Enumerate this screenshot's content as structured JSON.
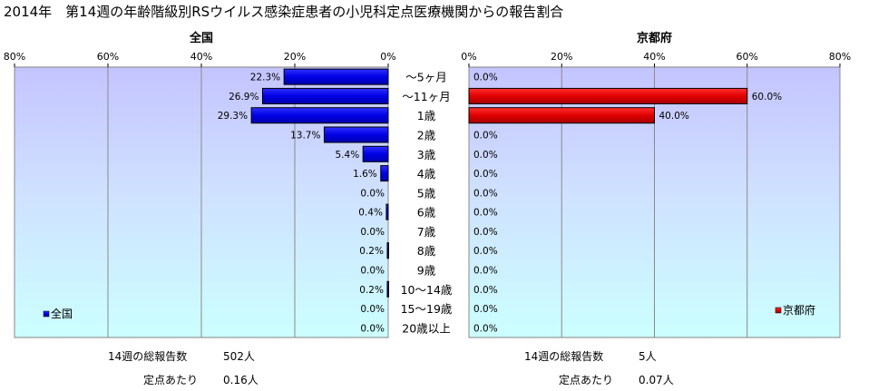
{
  "title": "2014年　第14週の年齢階級別RSウイルス感染症患者の小児科定点医療機関からの報告割合",
  "categories": [
    "～5ヶ月",
    "～11ヶ月",
    "1歳",
    "2歳",
    "3歳",
    "4歳",
    "5歳",
    "6歳",
    "7歳",
    "8歳",
    "9歳",
    "10～14歳",
    "15～19歳",
    "20歳以上"
  ],
  "chart_data": [
    {
      "type": "bar",
      "orientation": "horizontal",
      "x_direction": "reversed",
      "title": "全国",
      "categories": [
        "～5ヶ月",
        "～11ヶ月",
        "1歳",
        "2歳",
        "3歳",
        "4歳",
        "5歳",
        "6歳",
        "7歳",
        "8歳",
        "9歳",
        "10～14歳",
        "15～19歳",
        "20歳以上"
      ],
      "series": [
        {
          "name": "全国",
          "values": [
            22.3,
            26.9,
            29.3,
            13.7,
            5.4,
            1.6,
            0.0,
            0.4,
            0.0,
            0.2,
            0.0,
            0.2,
            0.0,
            0.0
          ]
        }
      ],
      "value_labels": [
        "22.3%",
        "26.9%",
        "29.3%",
        "13.7%",
        "5.4%",
        "1.6%",
        "0.0%",
        "0.4%",
        "0.0%",
        "0.2%",
        "0.0%",
        "0.2%",
        "0.0%",
        "0.0%"
      ],
      "xlim": [
        0,
        80
      ],
      "ticks": [
        "80%",
        "60%",
        "40%",
        "20%",
        "0%"
      ],
      "grid": true,
      "legend": "bottom-left",
      "bar_color": "#0000ee"
    },
    {
      "type": "bar",
      "orientation": "horizontal",
      "title": "京都府",
      "categories": [
        "～5ヶ月",
        "～11ヶ月",
        "1歳",
        "2歳",
        "3歳",
        "4歳",
        "5歳",
        "6歳",
        "7歳",
        "8歳",
        "9歳",
        "10～14歳",
        "15～19歳",
        "20歳以上"
      ],
      "series": [
        {
          "name": "京都府",
          "values": [
            0.0,
            60.0,
            40.0,
            0.0,
            0.0,
            0.0,
            0.0,
            0.0,
            0.0,
            0.0,
            0.0,
            0.0,
            0.0,
            0.0
          ]
        }
      ],
      "value_labels": [
        "0.0%",
        "60.0%",
        "40.0%",
        "0.0%",
        "0.0%",
        "0.0%",
        "0.0%",
        "0.0%",
        "0.0%",
        "0.0%",
        "0.0%",
        "0.0%",
        "0.0%",
        "0.0%"
      ],
      "xlim": [
        0,
        80
      ],
      "ticks": [
        "0%",
        "20%",
        "40%",
        "60%",
        "80%"
      ],
      "grid": true,
      "legend": "bottom-right",
      "bar_color": "#dd0000"
    }
  ],
  "footer": {
    "national_total_label": "14週の総報告数",
    "national_total_value": "502人",
    "national_per_label": "定点あたり",
    "national_per_value": "0.16人",
    "kyoto_total_label": "14週の総報告数",
    "kyoto_total_value": "5人",
    "kyoto_per_label": "定点あたり",
    "kyoto_per_value": "0.07人"
  }
}
